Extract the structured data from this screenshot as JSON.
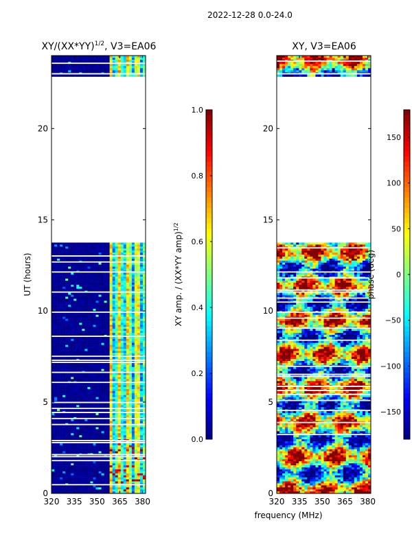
{
  "figure_title": "2022-12-28 0.0-24.0",
  "colors": {
    "background": "#ffffff",
    "axis": "#000000",
    "no_data": "#ffffff",
    "jet": [
      "#00007f",
      "#0000ff",
      "#007fff",
      "#00ffff",
      "#7fff7f",
      "#ffff00",
      "#ff7f00",
      "#ff0000",
      "#7f0000"
    ]
  },
  "chart_data": [
    {
      "type": "heatmap",
      "title_main": "XY/(XX*YY)",
      "title_exp": "1/2",
      "title_tail": ", V3=EA06",
      "xlabel": "",
      "ylabel": "UT (hours)",
      "xlim": [
        320,
        382
      ],
      "ylim": [
        0,
        24
      ],
      "x_ticks": [
        320,
        335,
        350,
        365,
        380
      ],
      "x_tick_labels": [
        "320",
        "335",
        "350",
        "365",
        "380"
      ],
      "y_ticks": [
        0,
        5,
        10,
        15,
        20
      ],
      "y_tick_labels": [
        "0",
        "5",
        "10",
        "15",
        "20"
      ],
      "data_ranges_hours": [
        [
          0,
          13.75
        ],
        [
          22.85,
          24
        ]
      ],
      "colorbar": {
        "label_main": "XY amp. / (XX*YY amp)",
        "label_exp": "1/2",
        "range": [
          0,
          1
        ],
        "ticks": [
          0,
          0.2,
          0.4,
          0.6,
          0.8,
          1.0
        ],
        "tick_labels": [
          "0.0",
          "0.2",
          "0.4",
          "0.6",
          "0.8",
          "1.0"
        ]
      }
    },
    {
      "type": "heatmap",
      "title_main": "XY, V3=EA06",
      "xlabel": "frequency (MHz)",
      "ylabel": "",
      "xlim": [
        320,
        382
      ],
      "ylim": [
        0,
        24
      ],
      "x_ticks": [
        320,
        335,
        350,
        365,
        380
      ],
      "x_tick_labels": [
        "320",
        "335",
        "350",
        "365",
        "380"
      ],
      "y_ticks": [
        0,
        5,
        10,
        15,
        20
      ],
      "y_tick_labels": [
        "0",
        "5",
        "10",
        "15",
        "20"
      ],
      "data_ranges_hours": [
        [
          0,
          13.75
        ],
        [
          22.85,
          24
        ]
      ],
      "colorbar": {
        "label_main": "phase (deg)",
        "range": [
          -180,
          180
        ],
        "ticks": [
          -150,
          -100,
          -50,
          0,
          50,
          100,
          150
        ],
        "tick_labels": [
          "−150",
          "−100",
          "−50",
          "0",
          "50",
          "100",
          "150"
        ]
      }
    }
  ]
}
